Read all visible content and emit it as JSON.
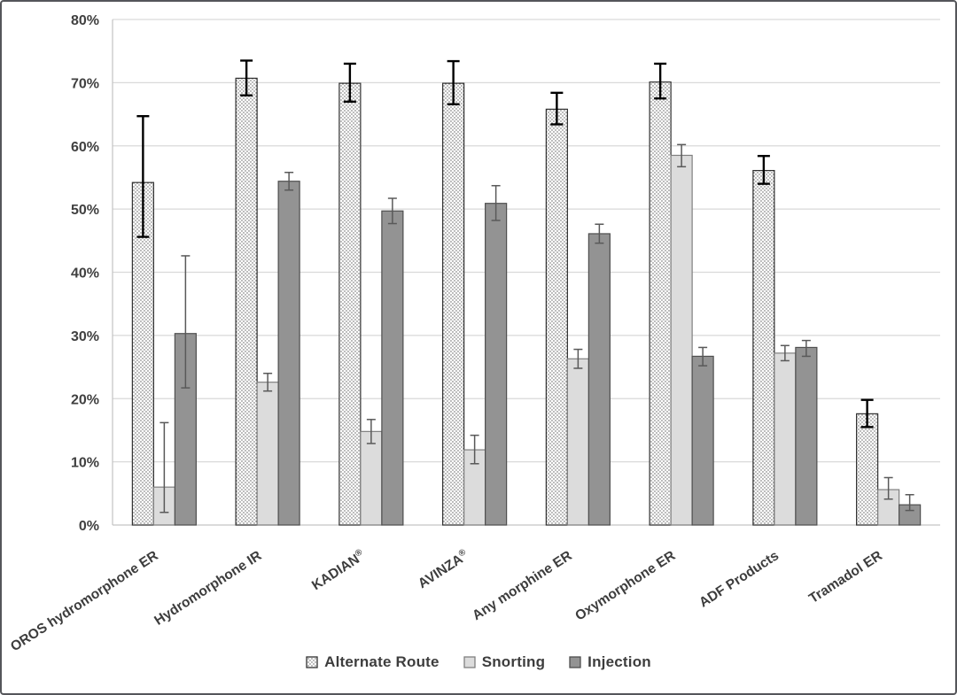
{
  "figure": {
    "frame_border_color": "#55565a",
    "background": "#ffffff"
  },
  "chart_data": {
    "type": "bar",
    "title": "",
    "xlabel": "",
    "ylabel": "",
    "ylim": [
      0,
      80
    ],
    "ytick_step": 10,
    "grid": true,
    "legend_position": "bottom",
    "yticks": [
      "0%",
      "10%",
      "20%",
      "30%",
      "40%",
      "50%",
      "60%",
      "70%",
      "80%"
    ],
    "categories": [
      "OROS hydromorphone ER",
      "Hydromorphone IR",
      "KADIAN®",
      "AVINZA®",
      "Any morphine ER",
      "Oxymorphone ER",
      "ADF Products",
      "Tramadol ER"
    ],
    "series": [
      {
        "name": "Alternate Route",
        "pattern": "dotted",
        "fill": "#ffffff",
        "dot_color": "#3a3a3a",
        "border": "#2f2f2f",
        "error_color": "#000000",
        "error_width": 2.4,
        "values": [
          54.2,
          70.7,
          69.9,
          69.9,
          65.8,
          70.1,
          56.1,
          17.6
        ],
        "err_low": [
          45.6,
          68.0,
          67.0,
          66.6,
          63.4,
          67.5,
          54.0,
          15.5
        ],
        "err_high": [
          64.7,
          73.5,
          73.0,
          73.4,
          68.4,
          73.0,
          58.4,
          19.8
        ]
      },
      {
        "name": "Snorting",
        "pattern": "solid",
        "fill": "#dcdcdc",
        "border": "#7f7f7f",
        "error_color": "#595959",
        "error_width": 1.5,
        "values": [
          6.0,
          22.6,
          14.8,
          11.9,
          26.3,
          58.5,
          27.2,
          5.6
        ],
        "err_low": [
          2.0,
          21.2,
          12.9,
          9.7,
          24.8,
          56.7,
          26.0,
          4.1
        ],
        "err_high": [
          16.2,
          24.0,
          16.7,
          14.2,
          27.8,
          60.2,
          28.4,
          7.5
        ]
      },
      {
        "name": "Injection",
        "pattern": "solid",
        "fill": "#939393",
        "border": "#4f4f4f",
        "error_color": "#595959",
        "error_width": 1.5,
        "values": [
          30.3,
          54.4,
          49.7,
          50.9,
          46.1,
          26.7,
          28.1,
          3.2
        ],
        "err_low": [
          21.7,
          53.0,
          47.7,
          48.2,
          44.6,
          25.2,
          26.7,
          2.3
        ],
        "err_high": [
          42.6,
          55.8,
          51.7,
          53.7,
          47.6,
          28.1,
          29.2,
          4.8
        ]
      }
    ],
    "style": {
      "gridline_color": "#d9d9d9",
      "axis_line_color": "#c3c3c3",
      "tick_label_color": "#404040",
      "category_label_color": "#3d3d3d"
    }
  }
}
